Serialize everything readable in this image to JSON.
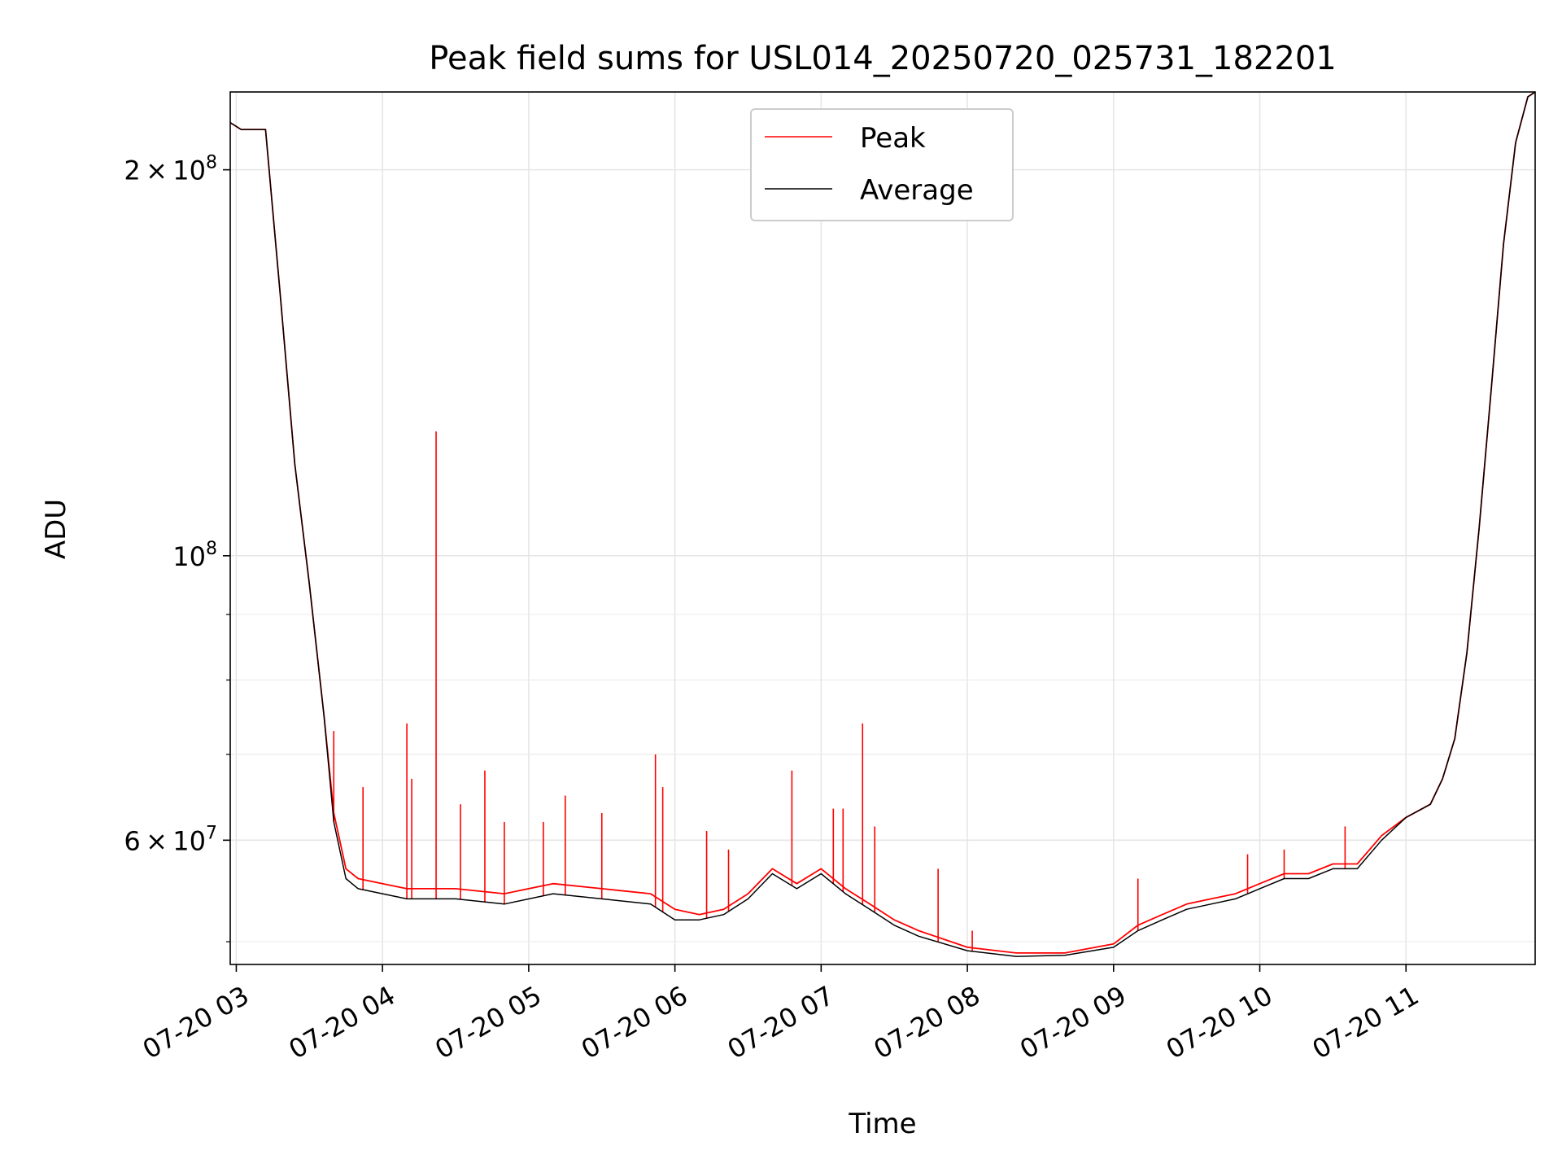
{
  "chart_data": {
    "type": "line",
    "title": "Peak field sums for USL014_20250720_025731_182201",
    "xlabel": "Time",
    "ylabel": "ADU",
    "x_scale": "time",
    "y_scale": "log",
    "xlim": [
      "2025-07-20 02:57:31",
      "2025-07-20 11:53:00"
    ],
    "ylim": [
      48000000,
      230000000
    ],
    "grid": true,
    "legend_position": "upper center",
    "x_ticks": [
      "07-20 03",
      "07-20 04",
      "07-20 05",
      "07-20 06",
      "07-20 07",
      "07-20 08",
      "07-20 09",
      "07-20 10",
      "07-20 11"
    ],
    "y_major_ticks": [
      {
        "value": 200000000,
        "mant": "2",
        "exp": "8"
      },
      {
        "value": 100000000,
        "mant": "",
        "exp": "8"
      },
      {
        "value": 60000000,
        "mant": "6",
        "exp": "7"
      }
    ],
    "y_minor_ticks": [
      50000000,
      70000000,
      80000000,
      90000000
    ],
    "series": [
      {
        "name": "Peak",
        "color": "#ff0000",
        "x": [
          "02:57",
          "03:02",
          "03:12",
          "03:18",
          "03:24",
          "03:30",
          "03:36",
          "03:40",
          "03:45",
          "03:50",
          "04:00",
          "04:10",
          "04:30",
          "04:50",
          "05:10",
          "05:30",
          "05:50",
          "06:00",
          "06:10",
          "06:20",
          "06:30",
          "06:40",
          "06:50",
          "07:00",
          "07:10",
          "07:20",
          "07:30",
          "07:40",
          "08:00",
          "08:20",
          "08:40",
          "09:00",
          "09:10",
          "09:20",
          "09:30",
          "09:40",
          "09:50",
          "10:00",
          "10:10",
          "10:20",
          "10:30",
          "10:40",
          "10:50",
          "11:00",
          "11:10",
          "11:15",
          "11:20",
          "11:25",
          "11:30",
          "11:35",
          "11:40",
          "11:45",
          "11:50",
          "11:53"
        ],
        "y": [
          218000000,
          215000000,
          215000000,
          160000000,
          118000000,
          95000000,
          75000000,
          63000000,
          57000000,
          56000000,
          55500000,
          55000000,
          55000000,
          54500000,
          55500000,
          55000000,
          54500000,
          53000000,
          52500000,
          53000000,
          54500000,
          57000000,
          55500000,
          57000000,
          55000000,
          53500000,
          52000000,
          51000000,
          49500000,
          49000000,
          49000000,
          49800000,
          51500000,
          52500000,
          53500000,
          54000000,
          54500000,
          55500000,
          56500000,
          56500000,
          57500000,
          57500000,
          60500000,
          62500000,
          64000000,
          67000000,
          72000000,
          84000000,
          105000000,
          135000000,
          175000000,
          210000000,
          228000000,
          230000000
        ],
        "spikes": [
          [
            "03:40",
            73000000
          ],
          [
            "03:52",
            66000000
          ],
          [
            "04:10",
            74000000
          ],
          [
            "04:12",
            67000000
          ],
          [
            "04:22",
            125000000
          ],
          [
            "04:32",
            64000000
          ],
          [
            "04:42",
            68000000
          ],
          [
            "04:50",
            62000000
          ],
          [
            "05:06",
            62000000
          ],
          [
            "05:15",
            65000000
          ],
          [
            "05:30",
            63000000
          ],
          [
            "05:52",
            70000000
          ],
          [
            "05:55",
            66000000
          ],
          [
            "06:13",
            61000000
          ],
          [
            "06:22",
            59000000
          ],
          [
            "06:48",
            68000000
          ],
          [
            "07:05",
            63500000
          ],
          [
            "07:09",
            63500000
          ],
          [
            "07:17",
            74000000
          ],
          [
            "07:22",
            61500000
          ],
          [
            "07:48",
            57000000
          ],
          [
            "08:02",
            51000000
          ],
          [
            "09:10",
            56000000
          ],
          [
            "09:55",
            58500000
          ],
          [
            "10:10",
            59000000
          ],
          [
            "10:35",
            61500000
          ]
        ]
      },
      {
        "name": "Average",
        "color": "#000000",
        "x": [
          "02:57",
          "03:02",
          "03:12",
          "03:18",
          "03:24",
          "03:30",
          "03:36",
          "03:40",
          "03:45",
          "03:50",
          "04:00",
          "04:10",
          "04:30",
          "04:50",
          "05:10",
          "05:30",
          "05:50",
          "06:00",
          "06:10",
          "06:20",
          "06:30",
          "06:40",
          "06:50",
          "07:00",
          "07:10",
          "07:20",
          "07:30",
          "07:40",
          "08:00",
          "08:20",
          "08:40",
          "09:00",
          "09:10",
          "09:20",
          "09:30",
          "09:40",
          "09:50",
          "10:00",
          "10:10",
          "10:20",
          "10:30",
          "10:40",
          "10:50",
          "11:00",
          "11:10",
          "11:15",
          "11:20",
          "11:25",
          "11:30",
          "11:35",
          "11:40",
          "11:45",
          "11:50",
          "11:53"
        ],
        "y": [
          218000000,
          215000000,
          215000000,
          160000000,
          118000000,
          95000000,
          75000000,
          62000000,
          56000000,
          55000000,
          54500000,
          54000000,
          54000000,
          53500000,
          54500000,
          54000000,
          53500000,
          52000000,
          52000000,
          52500000,
          54000000,
          56500000,
          55000000,
          56500000,
          54500000,
          53000000,
          51500000,
          50500000,
          49200000,
          48700000,
          48800000,
          49500000,
          51000000,
          52000000,
          53000000,
          53500000,
          54000000,
          55000000,
          56000000,
          56000000,
          57000000,
          57000000,
          60000000,
          62500000,
          64000000,
          67000000,
          72000000,
          84000000,
          105000000,
          135000000,
          175000000,
          210000000,
          228000000,
          230000000
        ]
      }
    ]
  }
}
